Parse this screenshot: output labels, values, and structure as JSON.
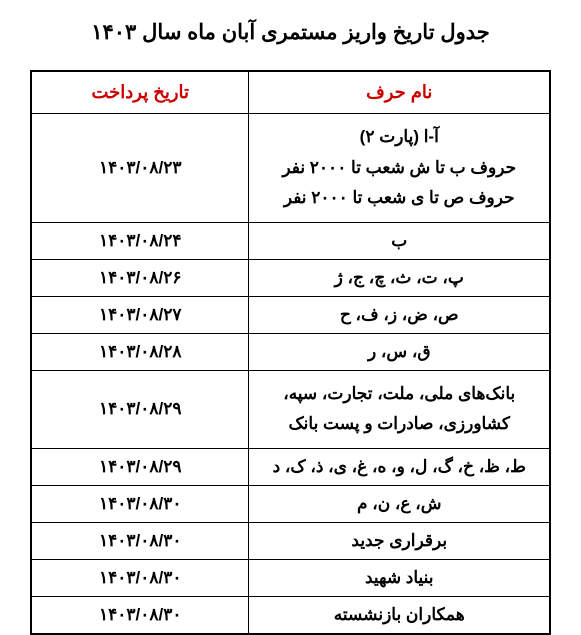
{
  "title": "جدول تاریخ واریز مستمری آبان ماه سال ۱۴۰۳",
  "headers": {
    "name": "نام حرف",
    "date": "تاریخ پرداخت"
  },
  "rows": [
    {
      "name_lines": [
        "آ-ا (پارت ۲)",
        "حروف ب تا ش شعب تا ۲۰۰۰ نفر",
        "حروف ص تا ی شعب تا ۲۰۰۰ نفر"
      ],
      "date": "۱۴۰۳/۰۸/۲۳"
    },
    {
      "name_lines": [
        "ب"
      ],
      "date": "۱۴۰۳/۰۸/۲۴"
    },
    {
      "name_lines": [
        "پ، ت، ث، چ، ج، ژ"
      ],
      "date": "۱۴۰۳/۰۸/۲۶"
    },
    {
      "name_lines": [
        "ص، ض، ز، ف، ح"
      ],
      "date": "۱۴۰۳/۰۸/۲۷"
    },
    {
      "name_lines": [
        "ق، س، ر"
      ],
      "date": "۱۴۰۳/۰۸/۲۸"
    },
    {
      "name_lines": [
        "بانک‌های ملی، ملت، تجارت، سپه،",
        "کشاورزی، صادرات و پست بانک"
      ],
      "date": "۱۴۰۳/۰۸/۲۹"
    },
    {
      "name_lines": [
        "ط، ظ، خ، گ، ل، و، ه، غ، ی، ذ، ک، د"
      ],
      "date": "۱۴۰۳/۰۸/۲۹"
    },
    {
      "name_lines": [
        "ش، ع، ن، م"
      ],
      "date": "۱۴۰۳/۰۸/۳۰"
    },
    {
      "name_lines": [
        "برقراری جدید"
      ],
      "date": "۱۴۰۳/۰۸/۳۰"
    },
    {
      "name_lines": [
        "بنیاد شهید"
      ],
      "date": "۱۴۰۳/۰۸/۳۰"
    },
    {
      "name_lines": [
        "همکاران بازنشسته"
      ],
      "date": "۱۴۰۳/۰۸/۳۰"
    }
  ]
}
